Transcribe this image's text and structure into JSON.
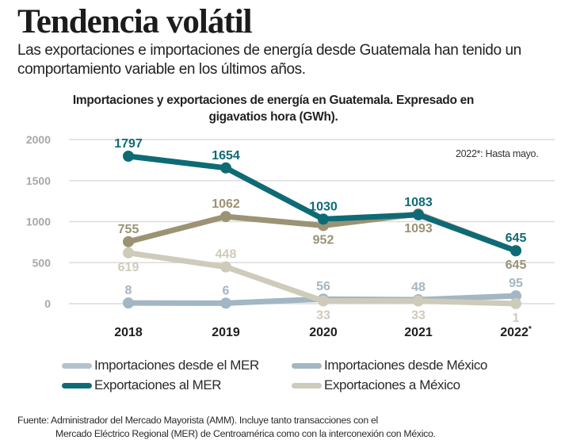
{
  "header": {
    "title": "Tendencia volátil",
    "subtitle": "Las exportaciones e importaciones de energía desde Guatemala han tenido un comportamiento variable en los últimos años."
  },
  "note": "2022*: Hasta mayo.",
  "footer": {
    "line1": "Fuente: Administrador del Mercado Mayorista (AMM). Incluye tanto transacciones con el",
    "line2": "Mercado Eléctrico Regional (MER) de Centroamérica como con la interconexión con México."
  },
  "legend": [
    {
      "label": "Importaciones desde el MER",
      "color": "#b3c3cd"
    },
    {
      "label": "Importaciones desde México",
      "color": "#a3b6c3"
    },
    {
      "label": "Exportaciones al MER",
      "color": "#0e6b75"
    },
    {
      "label": "Exportaciones a México",
      "color": "#cfcbbb"
    }
  ],
  "chart_data": {
    "type": "line",
    "title": "Importaciones y exportaciones de energía en Guatemala. Expresado en gigavatios hora (GWh).",
    "xlabel": "",
    "ylabel": "GWh",
    "categories": [
      "2018",
      "2019",
      "2020",
      "2021",
      "2022*"
    ],
    "yticks": [
      0,
      500,
      1000,
      1500,
      2000
    ],
    "ylim": [
      0,
      2000
    ],
    "grid": true,
    "series": [
      {
        "name": "Exportaciones al MER",
        "color": "#0e6b75",
        "values": [
          1797,
          1654,
          1030,
          1083,
          645
        ],
        "label_pos": [
          "above",
          "above",
          "above",
          "above",
          "above"
        ]
      },
      {
        "name": "Importaciones desde el MER",
        "color": "#9b9373",
        "values": [
          755,
          1062,
          952,
          1093,
          645
        ],
        "label_pos": [
          "above",
          "above",
          "below",
          "below",
          "below"
        ]
      },
      {
        "name": "Exportaciones a México",
        "color": "#cfcbbb",
        "values": [
          619,
          448,
          33,
          33,
          1
        ],
        "label_pos": [
          "below",
          "above",
          "below",
          "below",
          "below"
        ]
      },
      {
        "name": "Importaciones desde México",
        "color": "#a3b6c3",
        "values": [
          8,
          6,
          56,
          48,
          95
        ],
        "label_pos": [
          "above",
          "above",
          "above",
          "above",
          "above"
        ]
      }
    ]
  }
}
